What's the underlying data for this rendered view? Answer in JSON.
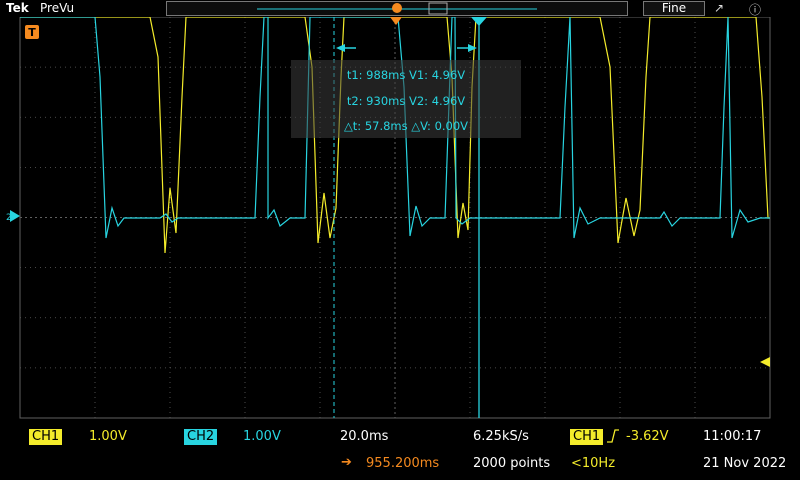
{
  "topbar": {
    "brand": "Tek",
    "mode": "PreVu",
    "fine_label": "Fine",
    "marker_t_label": "T"
  },
  "cursor_readout": {
    "line1": "t1: 988ms  V1: 4.96V",
    "line2": "t2: 930ms  V2: 4.96V",
    "line3": "△t: 57.8ms  △V: 0.00V"
  },
  "markers": {
    "trigger_marker": "T",
    "ch_ground_marker": "2"
  },
  "bottom": {
    "ch1_label": "CH1",
    "ch1_scale": "1.00V",
    "ch2_label": "CH2",
    "ch2_scale": "1.00V",
    "timebase": "20.0ms",
    "sample_rate": "6.25kS/s",
    "trigger_source": "CH1",
    "trigger_level": "-3.62V",
    "time": "11:00:17",
    "position_arrow": "➔",
    "position": "955.200ms",
    "record_length": "2000 points",
    "trigger_freq": "<10Hz",
    "date": "21 Nov 2022"
  },
  "colors": {
    "ch1": "#f4ec2b",
    "ch2": "#28d4e0",
    "trigger": "#f58a1f",
    "grid": "#606060"
  }
}
